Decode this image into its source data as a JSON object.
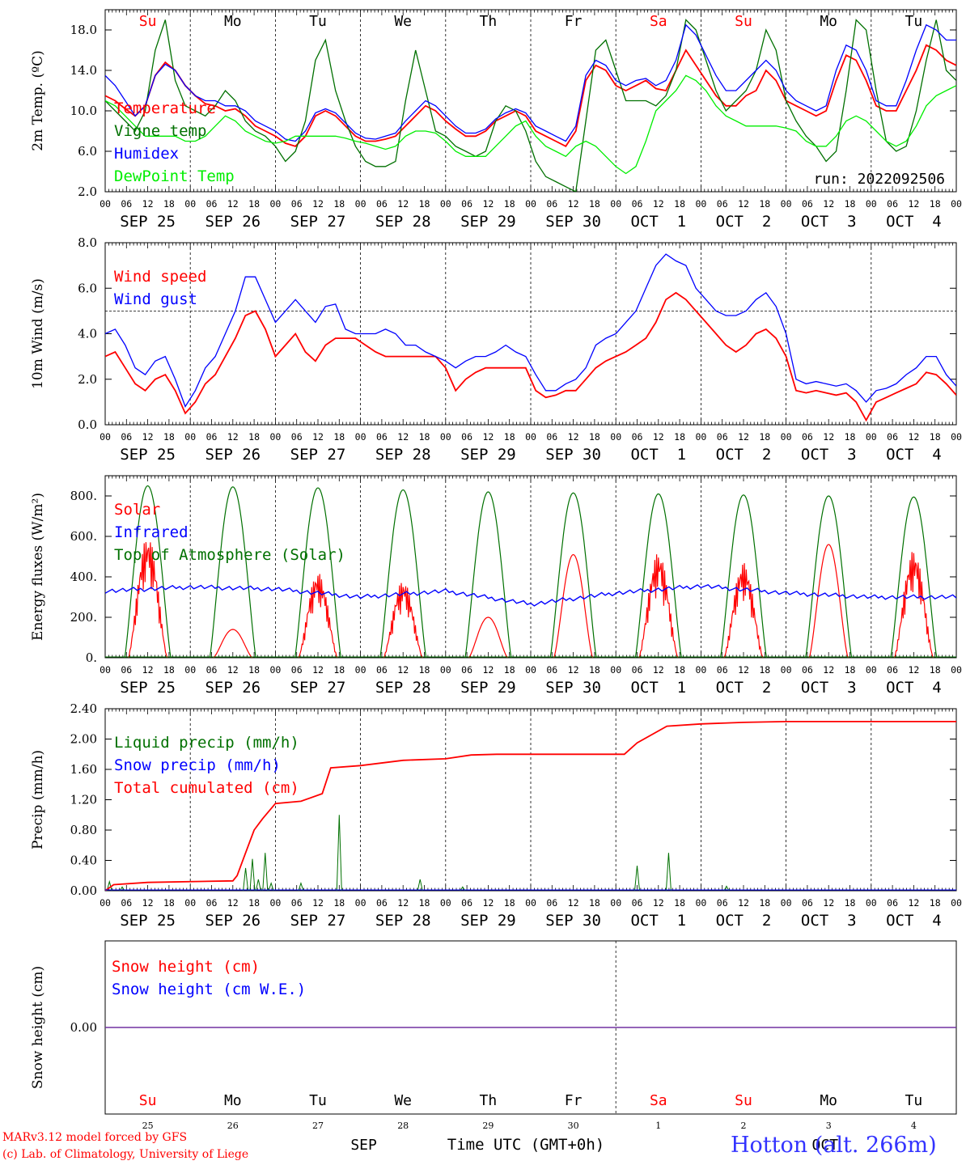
{
  "chart_data": {
    "type": "line",
    "run_label": "run: 2022092506",
    "time_axis": {
      "hour_ticks": [
        "00",
        "06",
        "12",
        "18"
      ],
      "date_labels": [
        "SEP 25",
        "SEP 26",
        "SEP 27",
        "SEP 28",
        "SEP 29",
        "SEP 30",
        "OCT  1",
        "OCT  2",
        "OCT  3",
        "OCT  4"
      ],
      "weekdays": [
        "Su",
        "Mo",
        "Tu",
        "We",
        "Th",
        "Fr",
        "Sa",
        "Su",
        "Mo",
        "Tu"
      ],
      "weekday_colors": [
        "#ff0000",
        "#000000",
        "#000000",
        "#000000",
        "#000000",
        "#000000",
        "#ff0000",
        "#ff0000",
        "#000000",
        "#000000"
      ],
      "day_numbers": [
        "25",
        "26",
        "27",
        "28",
        "29",
        "30",
        "1",
        "2",
        "3",
        "4"
      ],
      "month_labels": [
        "SEP",
        "OCT"
      ],
      "xlabel": "Time UTC (GMT+0h)"
    },
    "panels": [
      {
        "id": "temp",
        "ylabel": "2m Temp. (ºC)",
        "ylim": [
          2.0,
          20.0
        ],
        "yticks": [
          "2.0",
          "6.0",
          "10.0",
          "14.0",
          "18.0"
        ],
        "ytick_values": [
          2,
          6,
          10,
          14,
          18
        ],
        "series": [
          {
            "name": "Temperature",
            "color": "#ff0000",
            "values": [
              11.5,
              11,
              10.2,
              9.5,
              10.5,
              13.5,
              14.8,
              14,
              12.5,
              11.5,
              10.7,
              10.5,
              10,
              10.2,
              9.5,
              8.5,
              8,
              7.5,
              6.8,
              6.5,
              7.5,
              9.5,
              10,
              9.5,
              8.5,
              7.5,
              7,
              7,
              7.2,
              7.5,
              8.5,
              9.5,
              10.5,
              10,
              9,
              8.2,
              7.5,
              7.5,
              8,
              9,
              9.5,
              10,
              9.5,
              8,
              7.5,
              7,
              6.5,
              8,
              13,
              14.5,
              14,
              12.5,
              12,
              12.5,
              13,
              12.2,
              12,
              14,
              16,
              14.5,
              13,
              11.5,
              10.5,
              10.5,
              11.5,
              12,
              14,
              13,
              11,
              10.5,
              10,
              9.5,
              10,
              13,
              15.5,
              15,
              13,
              10.5,
              10,
              10,
              12,
              14,
              16.5,
              16,
              15,
              14.5
            ]
          },
          {
            "name": "Vigne temp",
            "color": "#007000",
            "values": [
              11,
              10,
              9,
              8,
              10,
              16,
              19,
              13,
              10.5,
              10,
              9.5,
              10.5,
              12,
              11,
              9,
              8,
              7.5,
              6.5,
              5,
              6,
              9,
              15,
              17,
              12,
              9,
              6.5,
              5,
              4.5,
              4.5,
              5,
              11,
              16,
              12,
              8,
              7.5,
              6.5,
              6,
              5.5,
              6,
              9,
              10.5,
              10,
              8,
              5,
              3.5,
              3,
              2.5,
              2,
              9,
              16,
              17,
              14,
              11,
              11,
              11,
              10.5,
              11.5,
              14,
              19,
              18,
              15,
              12,
              10,
              11,
              12,
              14,
              18,
              16,
              11,
              9,
              7.5,
              6.5,
              5,
              6,
              12,
              19,
              18,
              12,
              7,
              6,
              6.5,
              10,
              15,
              19,
              14,
              13
            ]
          },
          {
            "name": "Humidex",
            "color": "#0000ff",
            "values": [
              13.5,
              12.5,
              11,
              9.5,
              10.5,
              13.5,
              14.6,
              14,
              12.5,
              11.5,
              11,
              11,
              10.5,
              10.5,
              10,
              9,
              8.5,
              8,
              7.2,
              7,
              8,
              9.8,
              10.2,
              9.8,
              8.8,
              7.8,
              7.3,
              7.2,
              7.5,
              7.8,
              9,
              10,
              11,
              10.5,
              9.5,
              8.5,
              7.8,
              7.8,
              8.2,
              9.2,
              9.8,
              10.2,
              9.8,
              8.5,
              8,
              7.5,
              7,
              8.5,
              13.5,
              15,
              14.5,
              13,
              12.5,
              13,
              13.2,
              12.5,
              13,
              15,
              18.5,
              17.5,
              15.5,
              13.5,
              12,
              12,
              13,
              14,
              15,
              14,
              12,
              11,
              10.5,
              10,
              10.5,
              14,
              16.5,
              16,
              14,
              11,
              10.5,
              10.5,
              13,
              16,
              18.5,
              18,
              17,
              17
            ]
          },
          {
            "name": "DewPoint Temp",
            "color": "#00ee00",
            "values": [
              11,
              10.5,
              9.5,
              8.5,
              7.5,
              7.5,
              7.5,
              7.5,
              7,
              7,
              7.5,
              8.5,
              9.5,
              9,
              8,
              7.5,
              7,
              6.8,
              7,
              7.5,
              7.5,
              7.5,
              7.5,
              7.5,
              7.3,
              7,
              6.8,
              6.5,
              6.2,
              6.5,
              7.5,
              8,
              8,
              7.8,
              7,
              6,
              5.5,
              5.5,
              5.5,
              6.5,
              7.5,
              8.5,
              9,
              7.5,
              6.5,
              6,
              5.5,
              6.5,
              7,
              6.5,
              5.5,
              4.5,
              3.8,
              4.5,
              7,
              10,
              11,
              12,
              13.5,
              13,
              12,
              10.5,
              9.5,
              9,
              8.5,
              8.5,
              8.5,
              8.5,
              8.3,
              8,
              7,
              6.5,
              6.5,
              7.5,
              9,
              9.5,
              9,
              8,
              7,
              6.5,
              7,
              8.5,
              10.5,
              11.5,
              12,
              12.5
            ]
          }
        ],
        "legend": [
          "Temperature",
          "Vigne temp",
          "Humidex",
          "DewPoint Temp"
        ]
      },
      {
        "id": "wind",
        "ylabel": "10m Wind (m/s)",
        "ylim": [
          0.0,
          8.0
        ],
        "yticks": [
          "0.0",
          "2.0",
          "4.0",
          "6.0",
          "8.0"
        ],
        "ytick_values": [
          0,
          2,
          4,
          6,
          8
        ],
        "reference_line": 5.0,
        "series": [
          {
            "name": "Wind speed",
            "color": "#ff0000",
            "values": [
              3,
              3.2,
              2.5,
              1.8,
              1.5,
              2,
              2.2,
              1.5,
              0.5,
              1,
              1.8,
              2.2,
              3,
              3.8,
              4.8,
              5,
              4.2,
              3,
              3.5,
              4,
              3.2,
              2.8,
              3.5,
              3.8,
              3.8,
              3.8,
              3.5,
              3.2,
              3,
              3,
              3,
              3,
              3,
              3,
              2.5,
              1.5,
              2,
              2.3,
              2.5,
              2.5,
              2.5,
              2.5,
              2.5,
              1.5,
              1.2,
              1.3,
              1.5,
              1.5,
              2,
              2.5,
              2.8,
              3,
              3.2,
              3.5,
              3.8,
              4.5,
              5.5,
              5.8,
              5.5,
              5,
              4.5,
              4,
              3.5,
              3.2,
              3.5,
              4,
              4.2,
              3.8,
              3,
              1.5,
              1.4,
              1.5,
              1.4,
              1.3,
              1.4,
              1,
              0.2,
              1,
              1.2,
              1.4,
              1.6,
              1.8,
              2.3,
              2.2,
              1.8,
              1.3
            ]
          },
          {
            "name": "Wind gust",
            "color": "#0000ff",
            "values": [
              4,
              4.2,
              3.5,
              2.5,
              2.2,
              2.8,
              3,
              2,
              0.8,
              1.5,
              2.5,
              3,
              4,
              5,
              6.5,
              6.5,
              5.5,
              4.5,
              5,
              5.5,
              5,
              4.5,
              5.2,
              5.3,
              4.2,
              4,
              4,
              4,
              4.2,
              4,
              3.5,
              3.5,
              3.2,
              3,
              2.8,
              2.5,
              2.8,
              3,
              3,
              3.2,
              3.5,
              3.2,
              3,
              2.2,
              1.5,
              1.5,
              1.8,
              2,
              2.5,
              3.5,
              3.8,
              4,
              4.5,
              5,
              6,
              7,
              7.5,
              7.2,
              7,
              6,
              5.5,
              5,
              4.8,
              4.8,
              5,
              5.5,
              5.8,
              5.2,
              4,
              2,
              1.8,
              1.9,
              1.8,
              1.7,
              1.8,
              1.5,
              1,
              1.5,
              1.6,
              1.8,
              2.2,
              2.5,
              3,
              3,
              2.2,
              1.7
            ]
          }
        ],
        "legend": [
          "Wind speed",
          "Wind gust"
        ]
      },
      {
        "id": "energy",
        "ylabel": "Energy fluxes (W/m²)",
        "ylim": [
          0,
          900
        ],
        "yticks": [
          "0.",
          "200.",
          "400.",
          "600.",
          "800."
        ],
        "ytick_values": [
          0,
          200,
          400,
          600,
          800
        ],
        "solar_peaks": [
          600,
          140,
          420,
          380,
          200,
          510,
          520,
          470,
          560,
          530
        ],
        "toa_peaks": [
          850,
          845,
          840,
          830,
          820,
          815,
          810,
          805,
          800,
          795
        ],
        "infrared_daily": [
          330,
          350,
          340,
          300,
          330,
          265,
          320,
          355,
          320,
          300
        ],
        "series": [
          {
            "name": "Solar",
            "color": "#ff0000"
          },
          {
            "name": "Infrared",
            "color": "#0000ff"
          },
          {
            "name": "Top of Atmosphere (Solar)",
            "color": "#007000"
          }
        ],
        "legend": [
          "Solar",
          "Infrared",
          "Top of Atmosphere (Solar)"
        ]
      },
      {
        "id": "precip",
        "ylabel": "Precip (mm/h)",
        "ylim": [
          0.0,
          2.4
        ],
        "yticks": [
          "0.00",
          "0.40",
          "0.80",
          "1.20",
          "1.60",
          "2.00",
          "2.40"
        ],
        "ytick_values": [
          0,
          0.4,
          0.8,
          1.2,
          1.6,
          2.0,
          2.4
        ],
        "cumulative_points": [
          [
            0,
            0.0
          ],
          [
            0.1,
            0.08
          ],
          [
            0.5,
            0.11
          ],
          [
            1.5,
            0.13
          ],
          [
            1.55,
            0.2
          ],
          [
            1.65,
            0.5
          ],
          [
            1.75,
            0.8
          ],
          [
            1.85,
            0.95
          ],
          [
            2.0,
            1.15
          ],
          [
            2.3,
            1.18
          ],
          [
            2.55,
            1.28
          ],
          [
            2.65,
            1.62
          ],
          [
            3.0,
            1.65
          ],
          [
            3.5,
            1.72
          ],
          [
            4.0,
            1.74
          ],
          [
            4.3,
            1.79
          ],
          [
            4.6,
            1.8
          ],
          [
            6.1,
            1.8
          ],
          [
            6.25,
            1.95
          ],
          [
            6.6,
            2.17
          ],
          [
            7.0,
            2.2
          ],
          [
            7.5,
            2.22
          ],
          [
            8.0,
            2.23
          ],
          [
            10.0,
            2.23
          ]
        ],
        "liquid_spikes": [
          [
            0.05,
            0.12
          ],
          [
            0.2,
            0.05
          ],
          [
            1.65,
            0.3
          ],
          [
            1.73,
            0.42
          ],
          [
            1.8,
            0.15
          ],
          [
            1.88,
            0.5
          ],
          [
            1.95,
            0.1
          ],
          [
            2.3,
            0.1
          ],
          [
            2.75,
            1.0
          ],
          [
            3.7,
            0.15
          ],
          [
            4.2,
            0.05
          ],
          [
            6.25,
            0.33
          ],
          [
            6.62,
            0.5
          ],
          [
            7.3,
            0.06
          ]
        ],
        "series": [
          {
            "name": "Liquid precip (mm/h)",
            "color": "#007000"
          },
          {
            "name": "Snow precip (mm/h)",
            "color": "#0000ff"
          },
          {
            "name": "Total cumulated (cm)",
            "color": "#ff0000"
          }
        ],
        "legend": [
          "Liquid precip (mm/h)",
          "Snow precip (mm/h)",
          "Total cumulated (cm)"
        ]
      },
      {
        "id": "snow",
        "ylabel": "Snow height (cm)",
        "yticks": [
          "0.00"
        ],
        "series": [
          {
            "name": "Snow height (cm)",
            "color": "#ff0000"
          },
          {
            "name": "Snow height (cm W.E.)",
            "color": "#0000ff"
          }
        ],
        "legend": [
          "Snow height (cm)",
          "Snow height (cm W.E.)"
        ]
      }
    ]
  },
  "footer": {
    "line1": "MARv3.12 model forced by GFS",
    "line2": "(c) Lab. of Climatology, University of Liege",
    "station": "Hotton (alt. 266m)"
  }
}
